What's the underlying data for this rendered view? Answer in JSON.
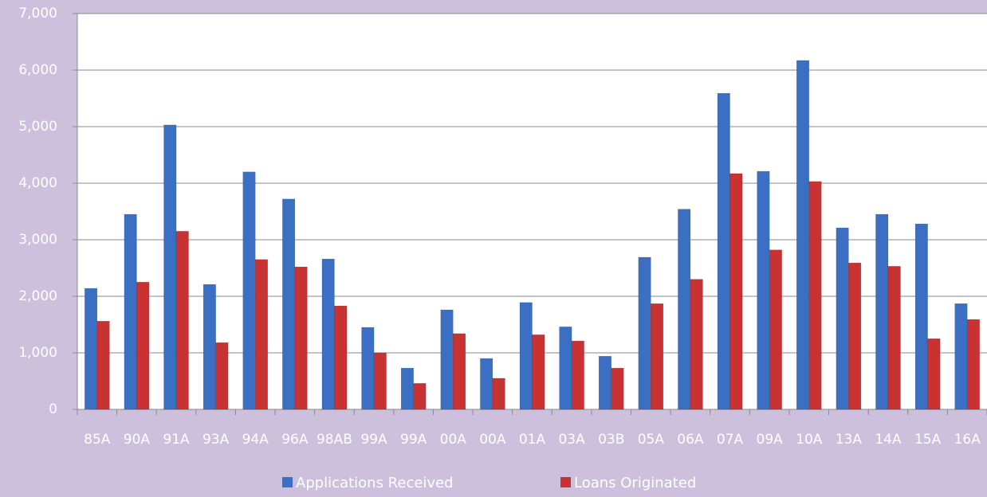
{
  "chart_data": {
    "type": "bar",
    "categories": [
      "85A",
      "90A",
      "91A",
      "93A",
      "94A",
      "96A",
      "98AB",
      "99A",
      "99A",
      "00A",
      "00A",
      "01A",
      "03A",
      "03B",
      "05A",
      "06A",
      "07A",
      "09A",
      "10A",
      "13A",
      "14A",
      "15A",
      "16A"
    ],
    "series": [
      {
        "name": "Applications Received",
        "color": "#3a6fc4",
        "values": [
          2140,
          3450,
          5030,
          2210,
          4200,
          3720,
          2660,
          1450,
          730,
          1760,
          900,
          1890,
          1460,
          940,
          2690,
          3540,
          5590,
          4210,
          6170,
          3210,
          3450,
          3280,
          1870
        ]
      },
      {
        "name": "Loans Originated",
        "color": "#c83232",
        "values": [
          1560,
          2250,
          3150,
          1180,
          2650,
          2520,
          1830,
          1000,
          460,
          1340,
          550,
          1320,
          1210,
          730,
          1870,
          2300,
          4170,
          2820,
          4030,
          2590,
          2530,
          1250,
          1590
        ]
      }
    ],
    "ylim": [
      0,
      7000
    ],
    "yticks": [
      0,
      {
        "value": 1000,
        "label": "1,000"
      },
      {
        "value": 2000,
        "label": "2,000"
      },
      {
        "value": 3000,
        "label": "3,000"
      },
      {
        "value": 4000,
        "label": "4,000"
      },
      {
        "value": 5000,
        "label": "5,000"
      },
      {
        "value": 6000,
        "label": "6,000"
      },
      {
        "value": 7000,
        "label": "7,000"
      }
    ],
    "grid": true,
    "legend": "bottom"
  }
}
